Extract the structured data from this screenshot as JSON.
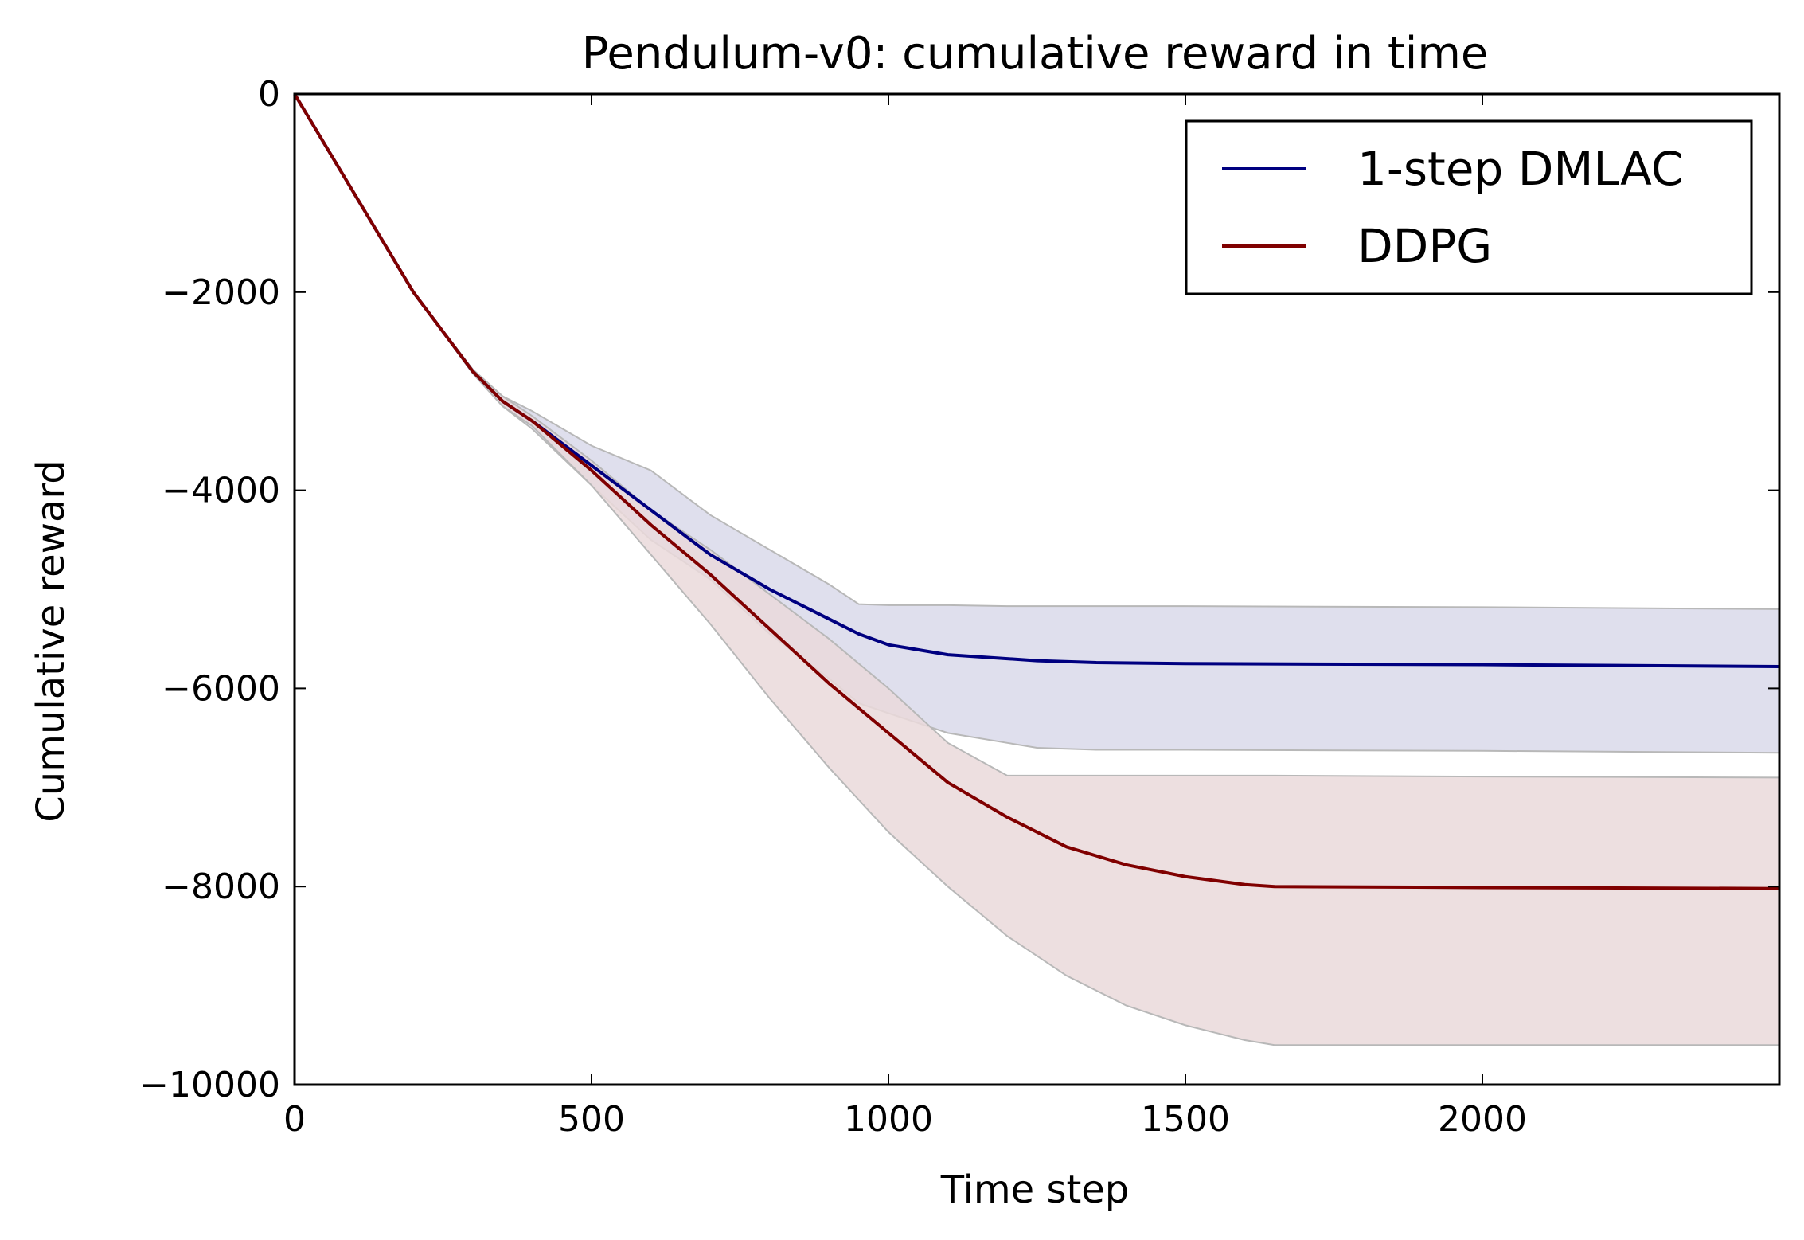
{
  "chart_data": {
    "type": "line",
    "title": "Pendulum-v0: cumulative reward in time",
    "xlabel": "Time step",
    "ylabel": "Cumulative reward",
    "xlim": [
      0,
      2500
    ],
    "ylim": [
      -10000,
      0
    ],
    "xticks": [
      0,
      500,
      1000,
      1500,
      2000
    ],
    "xtick_labels": [
      "0",
      "500",
      "1000",
      "1500",
      "2000"
    ],
    "yticks": [
      0,
      -2000,
      -4000,
      -6000,
      -8000,
      -10000
    ],
    "ytick_labels": [
      "0",
      "−2000",
      "−4000",
      "−6000",
      "−8000",
      "−10000"
    ],
    "grid": false,
    "legend_position": "top-right",
    "series": [
      {
        "name": "1-step DMLAC",
        "color": "#000080",
        "band_color": "#d9d9ea",
        "x": [
          0,
          100,
          200,
          300,
          350,
          400,
          500,
          600,
          700,
          800,
          900,
          950,
          1000,
          1100,
          1200,
          1250,
          1350,
          1500,
          2000,
          2500
        ],
        "y": [
          0,
          -1000,
          -2000,
          -2800,
          -3100,
          -3300,
          -3750,
          -4200,
          -4650,
          -5000,
          -5300,
          -5450,
          -5560,
          -5660,
          -5700,
          -5720,
          -5740,
          -5750,
          -5760,
          -5780
        ],
        "band_upper": [
          0,
          -1000,
          -2000,
          -2780,
          -3050,
          -3200,
          -3550,
          -3800,
          -4250,
          -4600,
          -4950,
          -5150,
          -5160,
          -5160,
          -5170,
          -5170,
          -5170,
          -5170,
          -5180,
          -5200
        ],
        "band_lower": [
          0,
          -1000,
          -2000,
          -2820,
          -3150,
          -3380,
          -3950,
          -4500,
          -4900,
          -5450,
          -5900,
          -6150,
          -6250,
          -6450,
          -6550,
          -6600,
          -6620,
          -6620,
          -6630,
          -6650
        ]
      },
      {
        "name": "DDPG",
        "color": "#800000",
        "band_color": "#ead9da",
        "x": [
          0,
          100,
          200,
          300,
          350,
          400,
          500,
          600,
          700,
          800,
          900,
          1000,
          1100,
          1200,
          1300,
          1400,
          1500,
          1600,
          1650,
          2000,
          2500
        ],
        "y": [
          0,
          -1000,
          -2000,
          -2800,
          -3100,
          -3300,
          -3800,
          -4350,
          -4850,
          -5400,
          -5950,
          -6450,
          -6950,
          -7300,
          -7600,
          -7780,
          -7900,
          -7980,
          -8000,
          -8010,
          -8020
        ],
        "band_upper": [
          0,
          -1000,
          -2000,
          -2780,
          -3050,
          -3250,
          -3700,
          -4200,
          -4600,
          -5050,
          -5500,
          -6000,
          -6550,
          -6880,
          -6880,
          -6880,
          -6880,
          -6880,
          -6880,
          -6890,
          -6900
        ],
        "band_lower": [
          0,
          -1000,
          -2000,
          -2820,
          -3150,
          -3350,
          -3950,
          -4650,
          -5350,
          -6100,
          -6800,
          -7450,
          -8000,
          -8500,
          -8900,
          -9200,
          -9400,
          -9550,
          -9600,
          -9600,
          -9600
        ]
      }
    ]
  }
}
